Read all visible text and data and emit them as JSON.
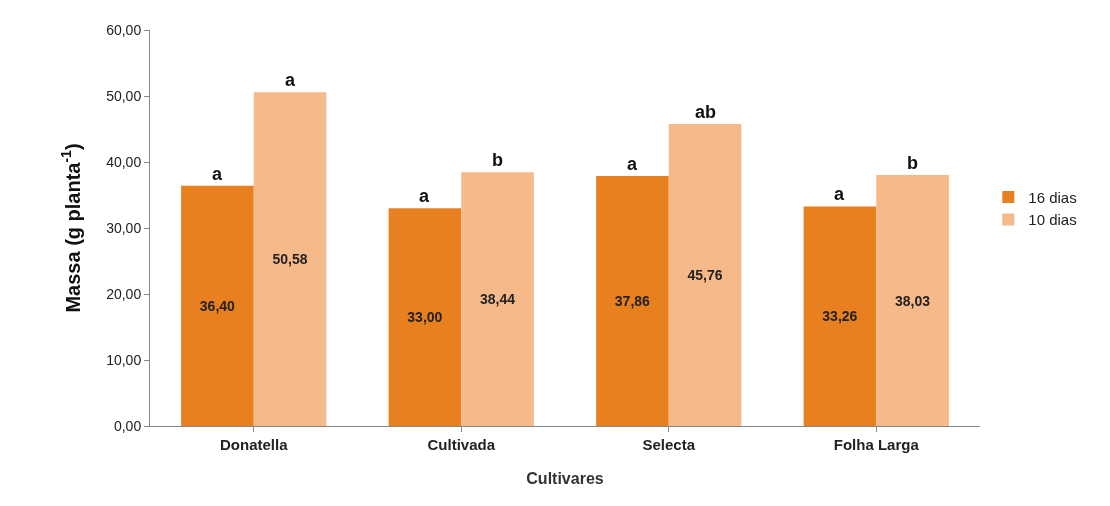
{
  "chart_data": {
    "type": "bar",
    "xlabel": "Cultivares",
    "ylabel": "Massa (g planta$^{-1}$)",
    "categories": [
      "Donatella",
      "Cultivada",
      "Selecta",
      "Folha Larga"
    ],
    "series": [
      {
        "name": "16 dias",
        "color": "#e8801f",
        "values": [
          36.4,
          33.0,
          37.86,
          33.26
        ],
        "value_labels": [
          "36,40",
          "33,00",
          "37,86",
          "33,26"
        ]
      },
      {
        "name": "10 dias",
        "color": "#f5b98a",
        "values": [
          50.58,
          38.44,
          45.76,
          38.03
        ],
        "value_labels": [
          "50,58",
          "38,44",
          "45,76",
          "38,03"
        ]
      }
    ],
    "ylim": [
      0,
      60
    ],
    "yticks": [
      {
        "value": 0,
        "label": "0,00"
      },
      {
        "value": 10,
        "label": "10,00"
      },
      {
        "value": 20,
        "label": "20,00"
      },
      {
        "value": 30,
        "label": "30,00"
      },
      {
        "value": 40,
        "label": "40,00"
      },
      {
        "value": 50,
        "label": "50,00"
      },
      {
        "value": 60,
        "label": "60,00"
      }
    ],
    "annotations": [
      {
        "text": "a",
        "x": "Donatella",
        "y": 36.4
      },
      {
        "text": "a",
        "x": "Donatella",
        "y": 50.58
      },
      {
        "text": "a",
        "x": "Cultivada",
        "y": 33.0
      },
      {
        "text": "b",
        "x": "Cultivada",
        "y": 38.44
      },
      {
        "text": "a",
        "x": "Selecta",
        "y": 37.86
      },
      {
        "text": "ab",
        "x": "Selecta",
        "y": 45.76
      },
      {
        "text": "a",
        "x": "Folha Larga",
        "y": 33.26
      },
      {
        "text": "b",
        "x": "Folha Larga",
        "y": 38.03
      }
    ],
    "grid": false,
    "legend": "right"
  }
}
